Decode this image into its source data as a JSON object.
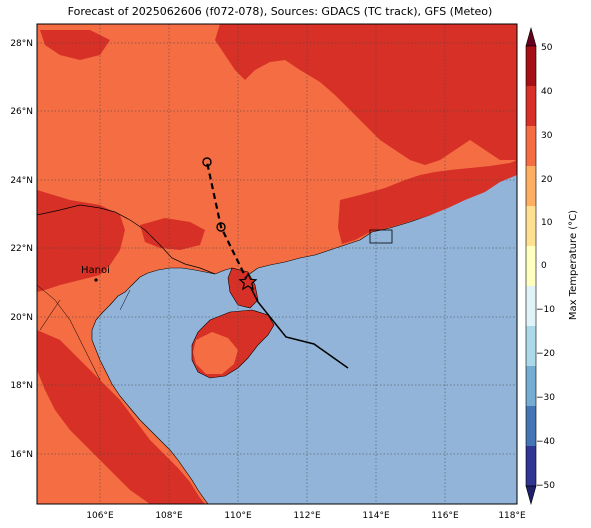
{
  "title": "Forecast of 2025062606 (f072-078), Sources: GDACS (TC track), GFS (Meteo)",
  "map": {
    "lon_range": [
      104.2,
      118.2
    ],
    "lat_range": [
      14.6,
      28.5
    ],
    "lon_ticks": [
      "106°E",
      "108°E",
      "110°E",
      "112°E",
      "114°E",
      "116°E",
      "118°E"
    ],
    "lat_ticks": [
      "16°N",
      "18°N",
      "20°N",
      "22°N",
      "24°N",
      "26°N",
      "28°N"
    ],
    "gridlines": true,
    "city": {
      "name": "Hanoi",
      "lon": 105.85,
      "lat": 21.03
    },
    "track_observed": [
      {
        "lon": 113.2,
        "lat": 18.5
      },
      {
        "lon": 112.2,
        "lat": 19.2
      },
      {
        "lon": 111.4,
        "lat": 19.4
      },
      {
        "lon": 110.6,
        "lat": 20.4
      },
      {
        "lon": 110.3,
        "lat": 21.0
      }
    ],
    "track_forecast": [
      {
        "lon": 110.3,
        "lat": 21.0
      },
      {
        "lon": 109.5,
        "lat": 22.6
      },
      {
        "lon": 109.1,
        "lat": 24.5
      }
    ],
    "current_position": {
      "lon": 110.3,
      "lat": 21.0
    }
  },
  "colorbar": {
    "label": "Max Temperature (°C)",
    "ticks": [
      "50",
      "40",
      "30",
      "20",
      "10",
      "0",
      "−10",
      "−20",
      "−30",
      "−40",
      "−50"
    ],
    "colors": [
      "#67001f",
      "#a50f15",
      "#d73027",
      "#f46d43",
      "#fdae61",
      "#fee090",
      "#ffffbf",
      "#e0f3f8",
      "#abd9e9",
      "#74add1",
      "#4575b4",
      "#313695",
      "#20206b"
    ]
  },
  "colors": {
    "sea": "#92b4d9",
    "land_main": "#f46d43",
    "land_hot": "#d73027"
  }
}
